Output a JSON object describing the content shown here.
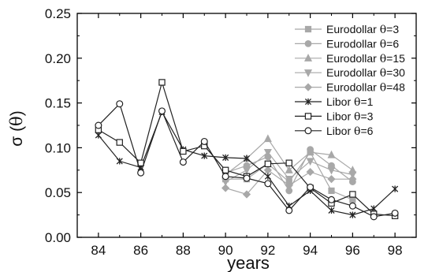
{
  "chart_data": {
    "type": "line",
    "title": "",
    "xlabel": "years",
    "ylabel_prefix": "σ (",
    "ylabel_theta": "θ",
    "ylabel_suffix": ")",
    "xlim": [
      83,
      99
    ],
    "ylim": [
      0,
      0.25
    ],
    "xticks": [
      84,
      86,
      88,
      90,
      92,
      94,
      96,
      98
    ],
    "yticks": [
      0.0,
      0.05,
      0.1,
      0.15,
      0.2,
      0.25
    ],
    "ytick_labels": [
      "0.00",
      "0.05",
      "0.10",
      "0.15",
      "0.20",
      "0.25"
    ],
    "grid": false,
    "legend_position": "top-right",
    "series": [
      {
        "name_prefix": "Eurodollar ",
        "name_theta": "θ",
        "name_suffix": "=3",
        "color": "#a8a8a8",
        "marker": "square-filled",
        "x": [
          90,
          91,
          92,
          93,
          94,
          95,
          96
        ],
        "y": [
          0.065,
          0.065,
          0.082,
          0.062,
          0.095,
          0.052,
          0.042
        ]
      },
      {
        "name_prefix": "Eurodollar ",
        "name_theta": "θ",
        "name_suffix": "=6",
        "color": "#a8a8a8",
        "marker": "circle-filled",
        "x": [
          90,
          91,
          92,
          93,
          94,
          95,
          96
        ],
        "y": [
          0.072,
          0.08,
          0.09,
          0.052,
          0.098,
          0.08,
          0.062
        ]
      },
      {
        "name_prefix": "Eurodollar ",
        "name_theta": "θ",
        "name_suffix": "=15",
        "color": "#a8a8a8",
        "marker": "triangle-up-filled",
        "x": [
          90,
          91,
          92,
          93,
          94,
          95,
          96
        ],
        "y": [
          0.07,
          0.088,
          0.11,
          0.075,
          0.095,
          0.092,
          0.075
        ]
      },
      {
        "name_prefix": "Eurodollar ",
        "name_theta": "θ",
        "name_suffix": "=30",
        "color": "#a8a8a8",
        "marker": "triangle-down-filled",
        "x": [
          90,
          91,
          92,
          93,
          94,
          95,
          96
        ],
        "y": [
          0.062,
          0.075,
          0.095,
          0.065,
          0.085,
          0.075,
          0.07
        ]
      },
      {
        "name_prefix": "Eurodollar ",
        "name_theta": "θ",
        "name_suffix": "=48",
        "color": "#a8a8a8",
        "marker": "diamond-filled",
        "x": [
          90,
          91,
          92,
          93,
          94,
          95,
          96
        ],
        "y": [
          0.055,
          0.048,
          0.075,
          0.058,
          0.073,
          0.065,
          0.065
        ]
      },
      {
        "name_prefix": "Libor ",
        "name_theta": "θ",
        "name_suffix": "=1",
        "color": "#222222",
        "marker": "star",
        "x": [
          84,
          85,
          86,
          87,
          88,
          89,
          90,
          91,
          92,
          93,
          94,
          95,
          96,
          97,
          98
        ],
        "y": [
          0.114,
          0.085,
          0.078,
          0.14,
          0.098,
          0.091,
          0.089,
          0.088,
          0.068,
          0.035,
          0.052,
          0.03,
          0.025,
          0.032,
          0.054
        ]
      },
      {
        "name_prefix": "Libor ",
        "name_theta": "θ",
        "name_suffix": "=3",
        "color": "#222222",
        "marker": "square-open",
        "x": [
          84,
          85,
          86,
          87,
          88,
          89,
          90,
          91,
          92,
          93,
          94,
          95,
          96,
          97,
          98
        ],
        "y": [
          0.12,
          0.106,
          0.083,
          0.173,
          0.096,
          0.102,
          0.075,
          0.068,
          0.082,
          0.083,
          0.055,
          0.038,
          0.048,
          0.026,
          0.024
        ]
      },
      {
        "name_prefix": "Libor ",
        "name_theta": "θ",
        "name_suffix": "=6",
        "color": "#222222",
        "marker": "circle-open",
        "x": [
          84,
          85,
          86,
          87,
          88,
          89,
          90,
          91,
          92,
          93,
          94,
          95,
          96,
          97,
          98
        ],
        "y": [
          0.125,
          0.149,
          0.072,
          0.141,
          0.084,
          0.107,
          0.068,
          0.066,
          0.06,
          0.03,
          0.056,
          0.042,
          0.035,
          0.023,
          0.027
        ]
      }
    ]
  }
}
